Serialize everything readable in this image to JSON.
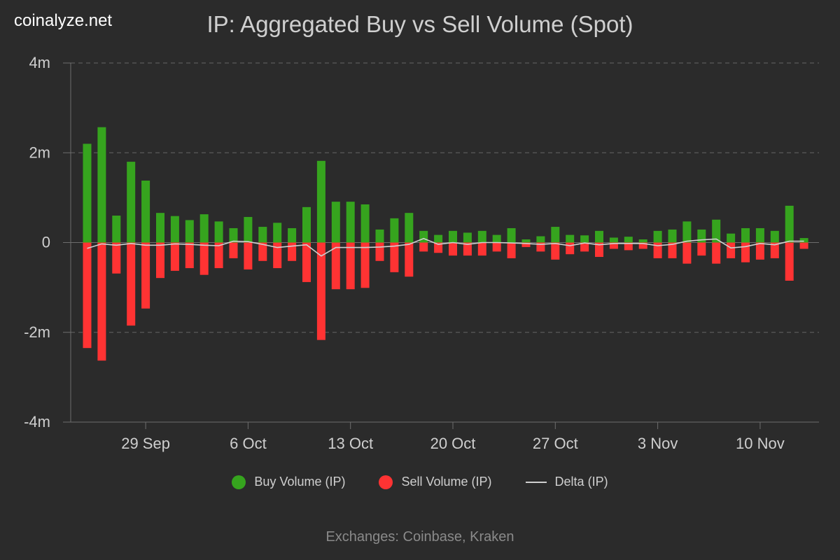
{
  "brand": "coinalyze.net",
  "footer": "Exchanges: Coinbase, Kraken",
  "colors": {
    "buy": "#36a41e",
    "sell": "#ff3333",
    "delta": "#d0d0d0"
  },
  "chart_data": {
    "type": "bar",
    "title": "IP: Aggregated Buy vs Sell Volume (Spot)",
    "ylim": [
      -4,
      4
    ],
    "y_unit": "m",
    "y_ticks": [
      {
        "value": 4,
        "label": "4m"
      },
      {
        "value": 2,
        "label": "2m"
      },
      {
        "value": 0,
        "label": "0"
      },
      {
        "value": -2,
        "label": "-2m"
      },
      {
        "value": -4,
        "label": "-4m"
      }
    ],
    "x_ticks": [
      "29 Sep",
      "6 Oct",
      "13 Oct",
      "20 Oct",
      "27 Oct",
      "3 Nov",
      "10 Nov"
    ],
    "legend": {
      "placement": "bottom"
    },
    "grid": true,
    "series": [
      {
        "name": "Buy Volume (IP)",
        "values": [
          2.2,
          2.57,
          0.6,
          1.8,
          1.38,
          0.66,
          0.59,
          0.5,
          0.63,
          0.47,
          0.32,
          0.57,
          0.35,
          0.44,
          0.32,
          0.79,
          1.82,
          0.91,
          0.91,
          0.85,
          0.29,
          0.54,
          0.66,
          0.26,
          0.17,
          0.26,
          0.22,
          0.26,
          0.17,
          0.32,
          0.07,
          0.14,
          0.35,
          0.17,
          0.16,
          0.26,
          0.11,
          0.13,
          0.07,
          0.26,
          0.29,
          0.47,
          0.29,
          0.51,
          0.2,
          0.32,
          0.32,
          0.26,
          0.82,
          0.1
        ]
      },
      {
        "name": "Sell Volume (IP)",
        "values": [
          -2.35,
          -2.63,
          -0.69,
          -1.85,
          -1.47,
          -0.79,
          -0.63,
          -0.57,
          -0.72,
          -0.57,
          -0.35,
          -0.6,
          -0.41,
          -0.57,
          -0.41,
          -0.88,
          -2.17,
          -1.04,
          -1.04,
          -1.01,
          -0.41,
          -0.66,
          -0.76,
          -0.2,
          -0.23,
          -0.29,
          -0.29,
          -0.29,
          -0.2,
          -0.35,
          -0.1,
          -0.2,
          -0.38,
          -0.26,
          -0.2,
          -0.32,
          -0.14,
          -0.17,
          -0.14,
          -0.35,
          -0.35,
          -0.47,
          -0.29,
          -0.47,
          -0.35,
          -0.44,
          -0.38,
          -0.35,
          -0.85,
          -0.14
        ]
      },
      {
        "name": "Delta (IP)",
        "values": [
          -0.13,
          -0.03,
          -0.06,
          -0.02,
          -0.06,
          -0.06,
          -0.03,
          -0.04,
          -0.06,
          -0.07,
          0.03,
          0.02,
          -0.04,
          -0.11,
          -0.08,
          -0.05,
          -0.3,
          -0.11,
          -0.11,
          -0.11,
          -0.1,
          -0.08,
          -0.04,
          0.09,
          -0.04,
          0.0,
          -0.04,
          0.0,
          0.0,
          -0.01,
          -0.02,
          -0.04,
          -0.02,
          -0.07,
          -0.01,
          -0.05,
          -0.02,
          -0.02,
          -0.02,
          -0.07,
          -0.04,
          0.03,
          0.06,
          0.08,
          -0.12,
          -0.09,
          -0.02,
          -0.05,
          0.03,
          0.03
        ]
      }
    ]
  }
}
